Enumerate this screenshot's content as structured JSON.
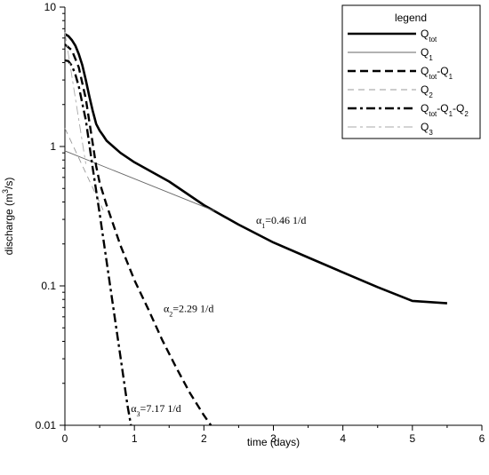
{
  "chart_data": {
    "type": "line",
    "xlabel": "time (days)",
    "ylabel": "discharge (m³/s)",
    "ylabel_parts": {
      "pre": "discharge (m",
      "sup": "3",
      "post": "/s)"
    },
    "xlim": [
      0,
      6
    ],
    "ylim": [
      0.01,
      10
    ],
    "yscale": "log",
    "grid": false,
    "legend_placement": "top-right",
    "x_ticks": [
      0,
      1,
      2,
      3,
      4,
      5,
      6
    ],
    "x_tick_labels": [
      "0",
      "1",
      "2",
      "3",
      "4",
      "5",
      "6"
    ],
    "y_ticks": [
      0.01,
      0.1,
      1,
      10
    ],
    "y_tick_labels": [
      "0.01",
      "0.1",
      "1",
      "10"
    ],
    "legend": {
      "title": "legend",
      "entries": [
        {
          "base": "Q",
          "sub": "tot",
          "rest": "",
          "style": "solid-thick"
        },
        {
          "base": "Q",
          "sub": "1",
          "rest": "",
          "style": "solid-thin"
        },
        {
          "base": "Q",
          "sub": "tot",
          "rest": "-Q",
          "sub2": "1",
          "style": "dash-thick"
        },
        {
          "base": "Q",
          "sub": "2",
          "rest": "",
          "style": "dash-thin"
        },
        {
          "base": "Q",
          "sub": "tot",
          "rest": "-Q",
          "sub2": "1",
          "rest2": "-Q",
          "sub3": "2",
          "style": "dashdot-thick"
        },
        {
          "base": "Q",
          "sub": "3",
          "rest": "",
          "style": "dashdot-thin"
        }
      ]
    },
    "annotations": [
      {
        "sym": "α",
        "sub": "1",
        "text": "=0.46 1/d",
        "x": 2.75,
        "y": 0.28
      },
      {
        "sym": "α",
        "sub": "2",
        "text": "=2.29 1/d",
        "x": 1.42,
        "y": 0.065
      },
      {
        "sym": "α",
        "sub": "3",
        "text": "=7.17 1/d",
        "x": 0.95,
        "y": 0.0125
      }
    ],
    "series": [
      {
        "name": "Qtot",
        "style": "solid-thick",
        "x": [
          0,
          0.05,
          0.1,
          0.15,
          0.2,
          0.25,
          0.3,
          0.35,
          0.4,
          0.45,
          0.5,
          0.55,
          0.6,
          0.8,
          1.0,
          1.5,
          2.0,
          2.5,
          3.0,
          3.5,
          4.0,
          4.5,
          5.0,
          5.5
        ],
        "y": [
          6.4,
          6.2,
          5.8,
          5.3,
          4.6,
          3.85,
          3.0,
          2.3,
          1.8,
          1.45,
          1.3,
          1.2,
          1.1,
          0.9,
          0.77,
          0.56,
          0.38,
          0.275,
          0.205,
          0.16,
          0.125,
          0.098,
          0.078,
          0.075
        ]
      },
      {
        "name": "Q1",
        "style": "solid-thin",
        "x": [
          0,
          2.15
        ],
        "y": [
          0.93,
          0.345
        ]
      },
      {
        "name": "Qtot-Q1",
        "style": "dash-thick",
        "x": [
          0,
          0.1,
          0.2,
          0.3,
          0.4,
          0.45,
          0.5,
          0.6,
          0.8,
          1.0,
          1.2,
          1.4,
          1.6,
          1.8,
          2.0,
          2.1
        ],
        "y": [
          5.4,
          4.9,
          3.7,
          2.2,
          1.05,
          0.72,
          0.55,
          0.38,
          0.195,
          0.11,
          0.068,
          0.041,
          0.026,
          0.017,
          0.0118,
          0.01
        ]
      },
      {
        "name": "Q2",
        "style": "dash-thin",
        "x": [
          0,
          0.55
        ],
        "y": [
          1.35,
          0.35
        ]
      },
      {
        "name": "Qtot-Q1-Q2",
        "style": "dashdot-thick",
        "x": [
          0,
          0.05,
          0.1,
          0.15,
          0.2,
          0.3,
          0.4,
          0.5,
          0.6,
          0.7,
          0.8,
          0.9,
          0.95
        ],
        "y": [
          4.15,
          4.1,
          3.8,
          3.3,
          2.7,
          1.55,
          0.7,
          0.33,
          0.15,
          0.068,
          0.031,
          0.014,
          0.01
        ]
      },
      {
        "name": "Q3",
        "style": "dashdot-thin",
        "x": [
          0,
          0.3
        ],
        "y": [
          6.6,
          0.75
        ]
      }
    ]
  }
}
